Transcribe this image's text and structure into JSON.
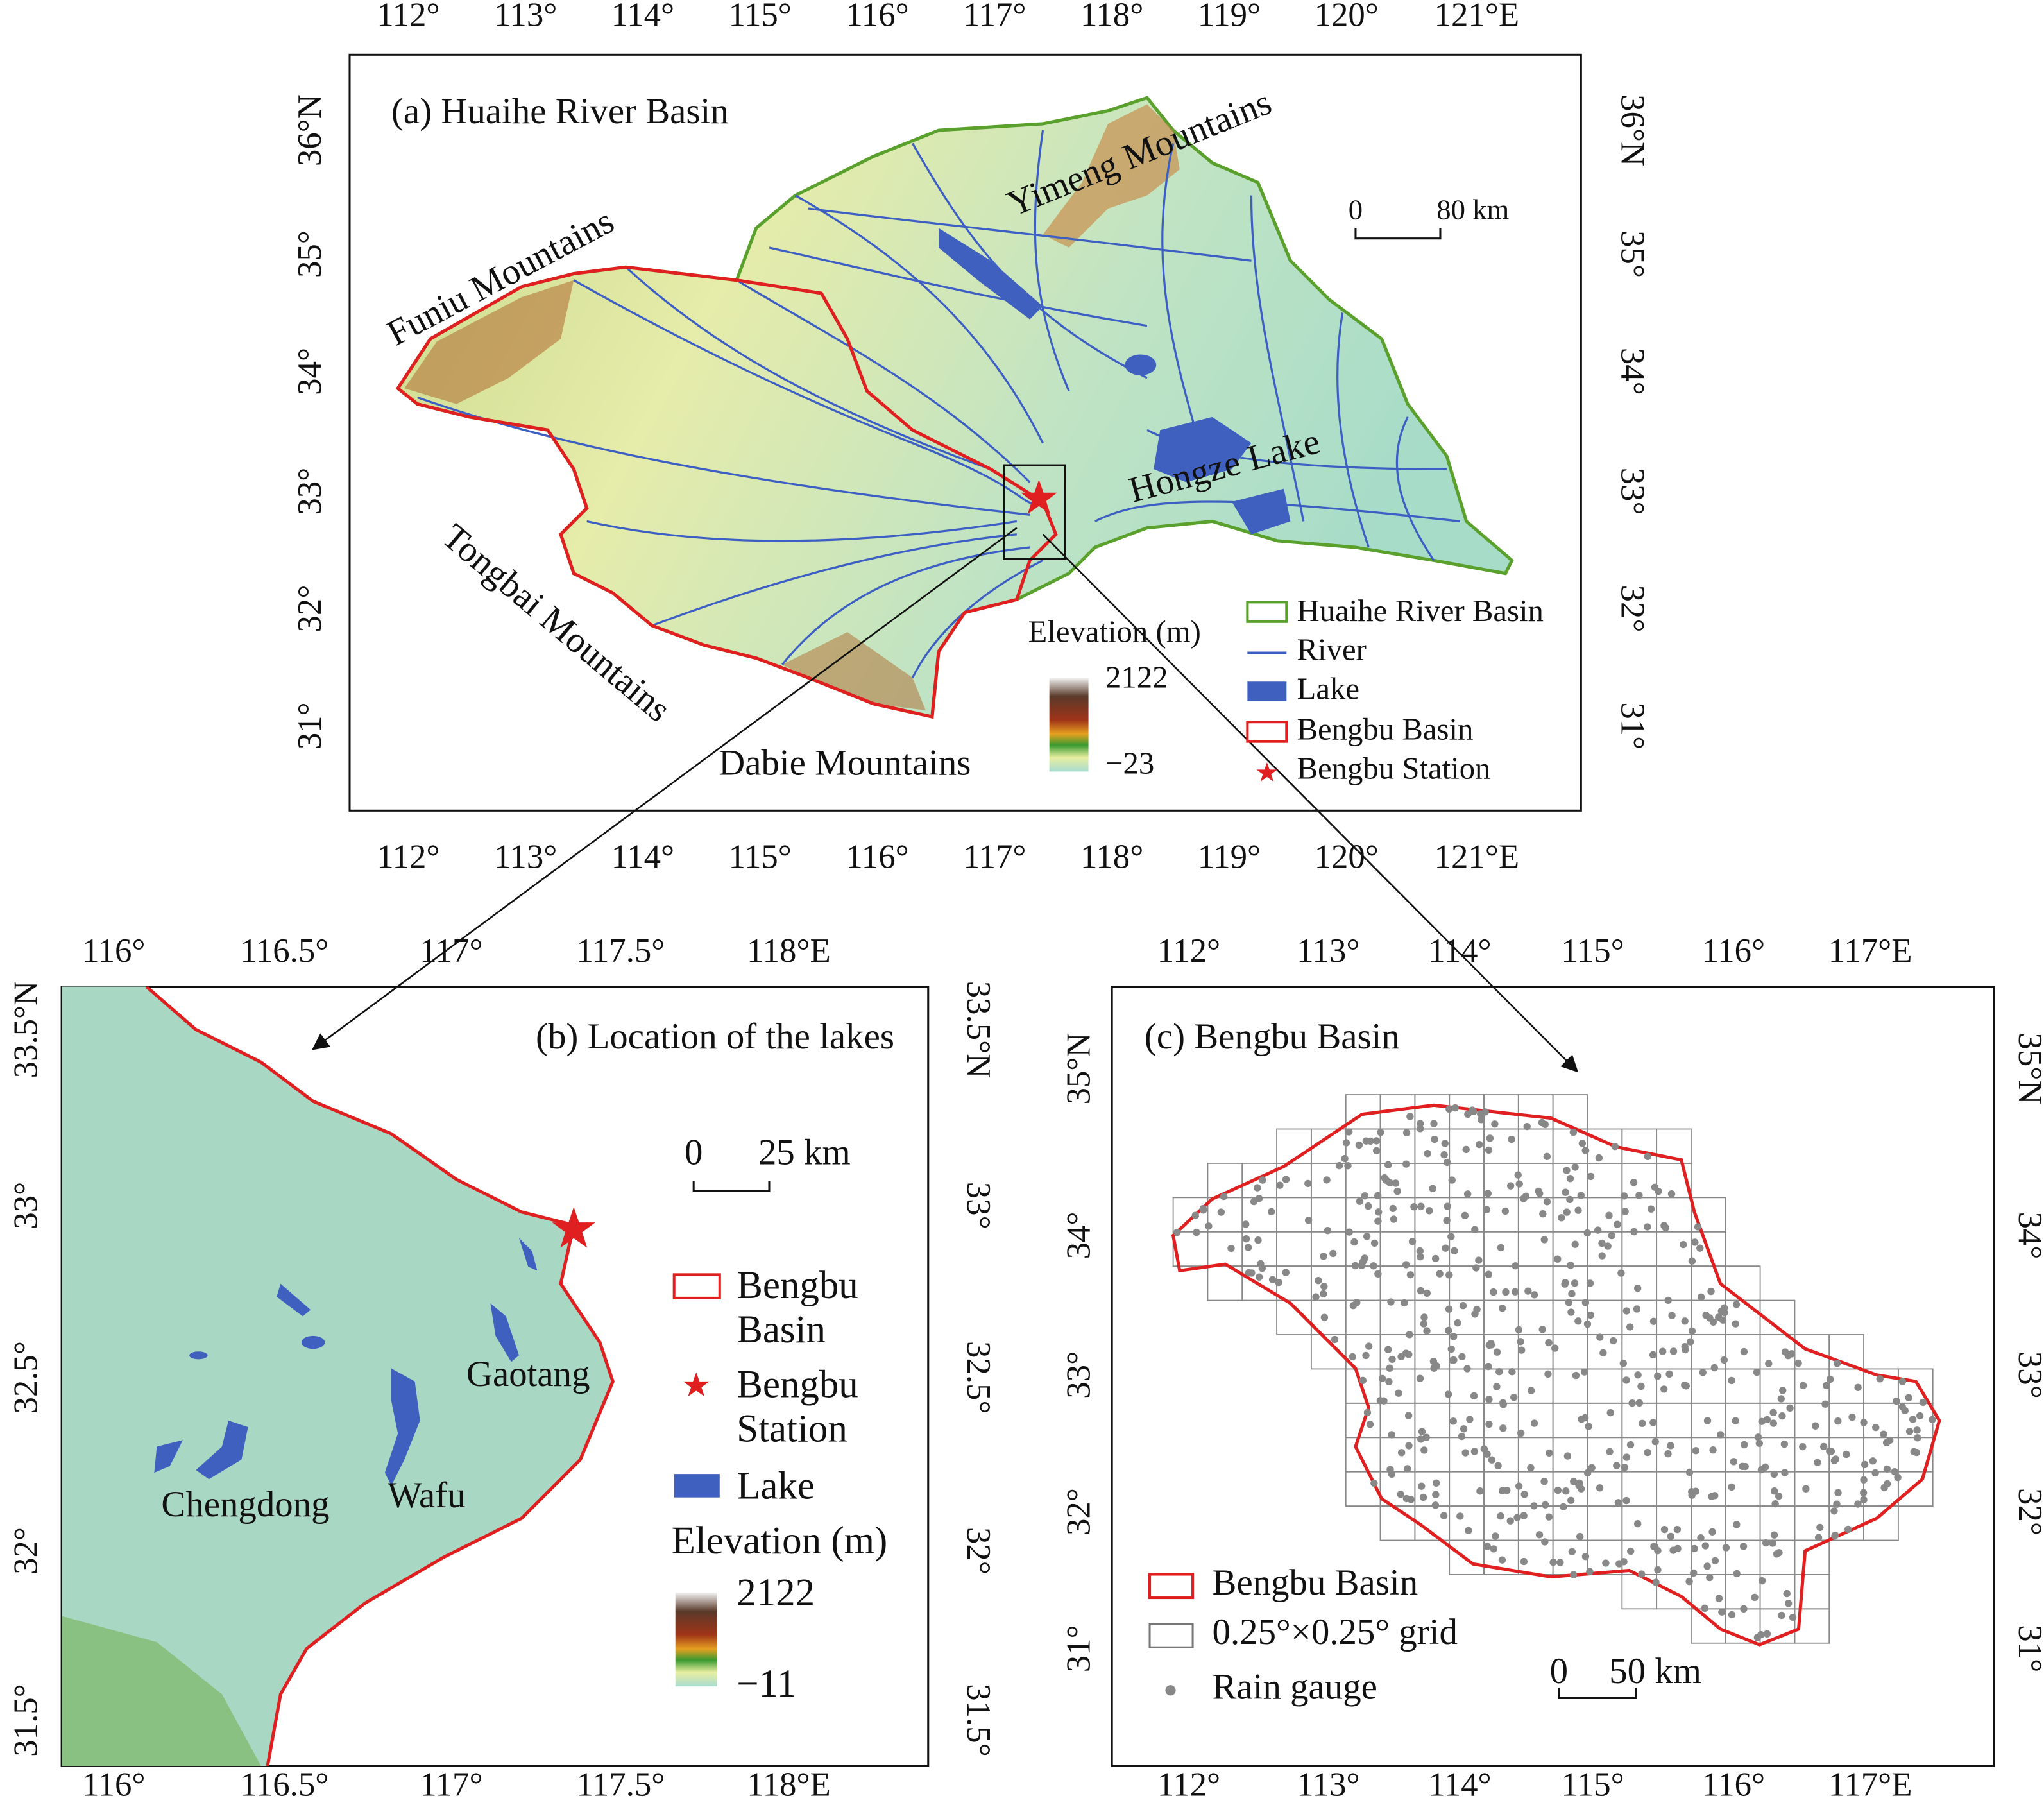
{
  "panel_a": {
    "title": "(a) Huaihe River Basin",
    "top_ticks": [
      "112°",
      "113°",
      "114°",
      "115°",
      "116°",
      "117°",
      "118°",
      "119°",
      "120°",
      "121°E"
    ],
    "bottom_ticks": [
      "112°",
      "113°",
      "114°",
      "115°",
      "116°",
      "117°",
      "118°",
      "119°",
      "120°",
      "121°E"
    ],
    "left_ticks": [
      "36°N",
      "35°",
      "34°",
      "33°",
      "32°",
      "31°"
    ],
    "right_ticks": [
      "36°N",
      "35°",
      "34°",
      "33°",
      "32°",
      "31°"
    ],
    "places": [
      "Yimeng Mountains",
      "Funiu Mountains",
      "Hongze Lake",
      "Tongbai Mountains",
      "Dabie Mountains"
    ],
    "scale_bar": [
      "0",
      "80 km"
    ],
    "elevation": {
      "title": "Elevation (m)",
      "max": "2122",
      "min": "−23"
    },
    "legend": [
      "Huaihe River Basin",
      "River",
      "Lake",
      "Bengbu Basin",
      "Bengbu Station"
    ]
  },
  "panel_b": {
    "title": "(b) Location of the lakes",
    "top_ticks": [
      "116°",
      "116.5°",
      "117°",
      "117.5°",
      "118°E"
    ],
    "bottom_ticks": [
      "116°",
      "116.5°",
      "117°",
      "117.5°",
      "118°E"
    ],
    "left_ticks": [
      "33.5°N",
      "33°",
      "32.5°",
      "32°",
      "31.5°"
    ],
    "right_ticks": [
      "33.5°N",
      "33°",
      "32.5°",
      "32°",
      "31.5°"
    ],
    "places": [
      "Gaotang",
      "Chengdong",
      "Wafu"
    ],
    "scale_bar": [
      "0",
      "25 km"
    ],
    "legend": [
      "Bengbu Basin",
      "Bengbu Station",
      "Lake"
    ],
    "elevation": {
      "title": "Elevation (m)",
      "max": "2122",
      "min": "−11"
    }
  },
  "panel_c": {
    "title": "(c) Bengbu Basin",
    "top_ticks": [
      "112°",
      "113°",
      "114°",
      "115°",
      "116°",
      "117°E"
    ],
    "bottom_ticks": [
      "112°",
      "113°",
      "114°",
      "115°",
      "116°",
      "117°E"
    ],
    "left_ticks": [
      "35°N",
      "34°",
      "33°",
      "32°",
      "31°"
    ],
    "right_ticks": [
      "35°N",
      "34°",
      "33°",
      "32°",
      "31°"
    ],
    "scale_bar": [
      "0",
      "50 km"
    ],
    "legend": [
      "Bengbu Basin",
      "0.25°×0.25° grid",
      "Rain gauge"
    ]
  }
}
